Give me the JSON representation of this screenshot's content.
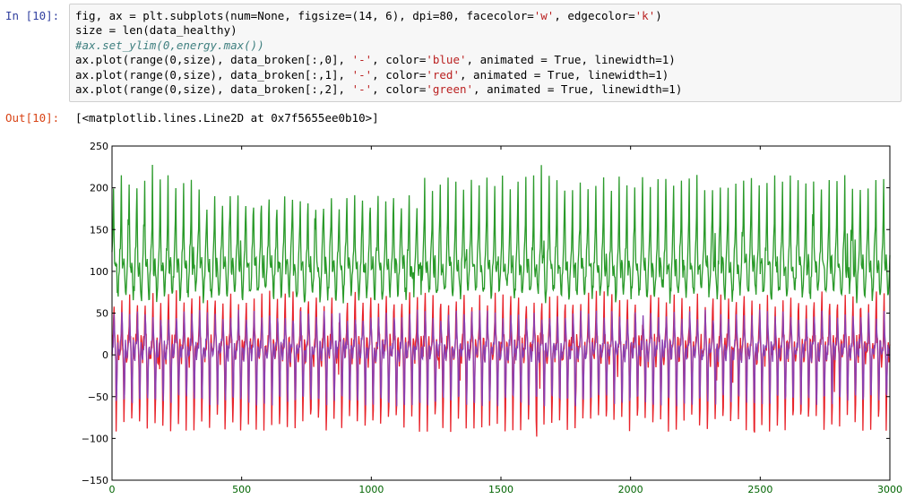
{
  "cell": {
    "in_prompt": "In [10]:",
    "out_prompt": "Out[10]:",
    "code_lines": [
      [
        {
          "t": "fig, ax = plt.subplots(num=None, figsize=(14, 6), dpi=80, facecolor="
        },
        {
          "t": "'w'",
          "c": "str"
        },
        {
          "t": ", edgecolor="
        },
        {
          "t": "'k'",
          "c": "str"
        },
        {
          "t": ")"
        }
      ],
      [
        {
          "t": "size = len(data_healthy)"
        }
      ],
      [
        {
          "t": "#ax.set_ylim(0,energy.max())",
          "c": "cmt"
        }
      ],
      [
        {
          "t": "ax.plot(range(0,size), data_broken[:,0], "
        },
        {
          "t": "'-'",
          "c": "str"
        },
        {
          "t": ", color="
        },
        {
          "t": "'blue'",
          "c": "str"
        },
        {
          "t": ", animated = True, linewidth=1)"
        }
      ],
      [
        {
          "t": "ax.plot(range(0,size), data_broken[:,1], "
        },
        {
          "t": "'-'",
          "c": "str"
        },
        {
          "t": ", color="
        },
        {
          "t": "'red'",
          "c": "str"
        },
        {
          "t": ", animated = True, linewidth=1)"
        }
      ],
      [
        {
          "t": "ax.plot(range(0,size), data_broken[:,2], "
        },
        {
          "t": "'-'",
          "c": "str"
        },
        {
          "t": ", color="
        },
        {
          "t": "'green'",
          "c": "str"
        },
        {
          "t": ", animated = True, linewidth=1)"
        }
      ]
    ],
    "output_text": "[<matplotlib.lines.Line2D at 0x7f5655ee0b10>]"
  },
  "chart_data": {
    "type": "line",
    "xlim": [
      0,
      3000
    ],
    "ylim": [
      -150,
      250
    ],
    "x_ticks": [
      0,
      500,
      1000,
      1500,
      2000,
      2500,
      3000
    ],
    "y_ticks": [
      -150,
      -100,
      -50,
      0,
      50,
      100,
      150,
      200,
      250
    ],
    "grid": false,
    "colors": {
      "tick_labels_x": "#006400",
      "tick_labels_y": "#000000",
      "frame": "#000000"
    },
    "series": [
      {
        "color": "#2a9a2a",
        "approx_range": [
          45,
          230
        ],
        "approx_cycle_samples": 30
      },
      {
        "color": "#e8232b",
        "approx_range": [
          -125,
          90
        ],
        "approx_cycle_samples": 30
      },
      {
        "color": "#8a3fb0",
        "approx_range": [
          -70,
          60
        ],
        "approx_cycle_samples": 30
      }
    ]
  }
}
